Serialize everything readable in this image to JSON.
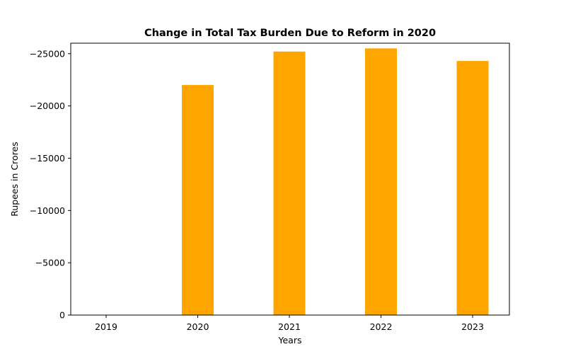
{
  "chart_data": {
    "type": "bar",
    "title": "Change in Total Tax Burden Due to Reform in 2020",
    "xlabel": "Years",
    "ylabel": "Rupees in Crores",
    "categories": [
      "2019",
      "2020",
      "2021",
      "2022",
      "2023"
    ],
    "values": [
      0,
      -22000,
      -25200,
      -25500,
      -24300
    ],
    "ylim": [
      0,
      -26000
    ],
    "y_axis_inverted": true,
    "yticks": [
      0,
      -5000,
      -10000,
      -15000,
      -20000,
      -25000
    ],
    "ytick_labels": [
      "0",
      "−5000",
      "−10000",
      "−15000",
      "−20000",
      "−25000"
    ],
    "bar_color": "#ffa500",
    "grid": false,
    "legend": "none"
  }
}
